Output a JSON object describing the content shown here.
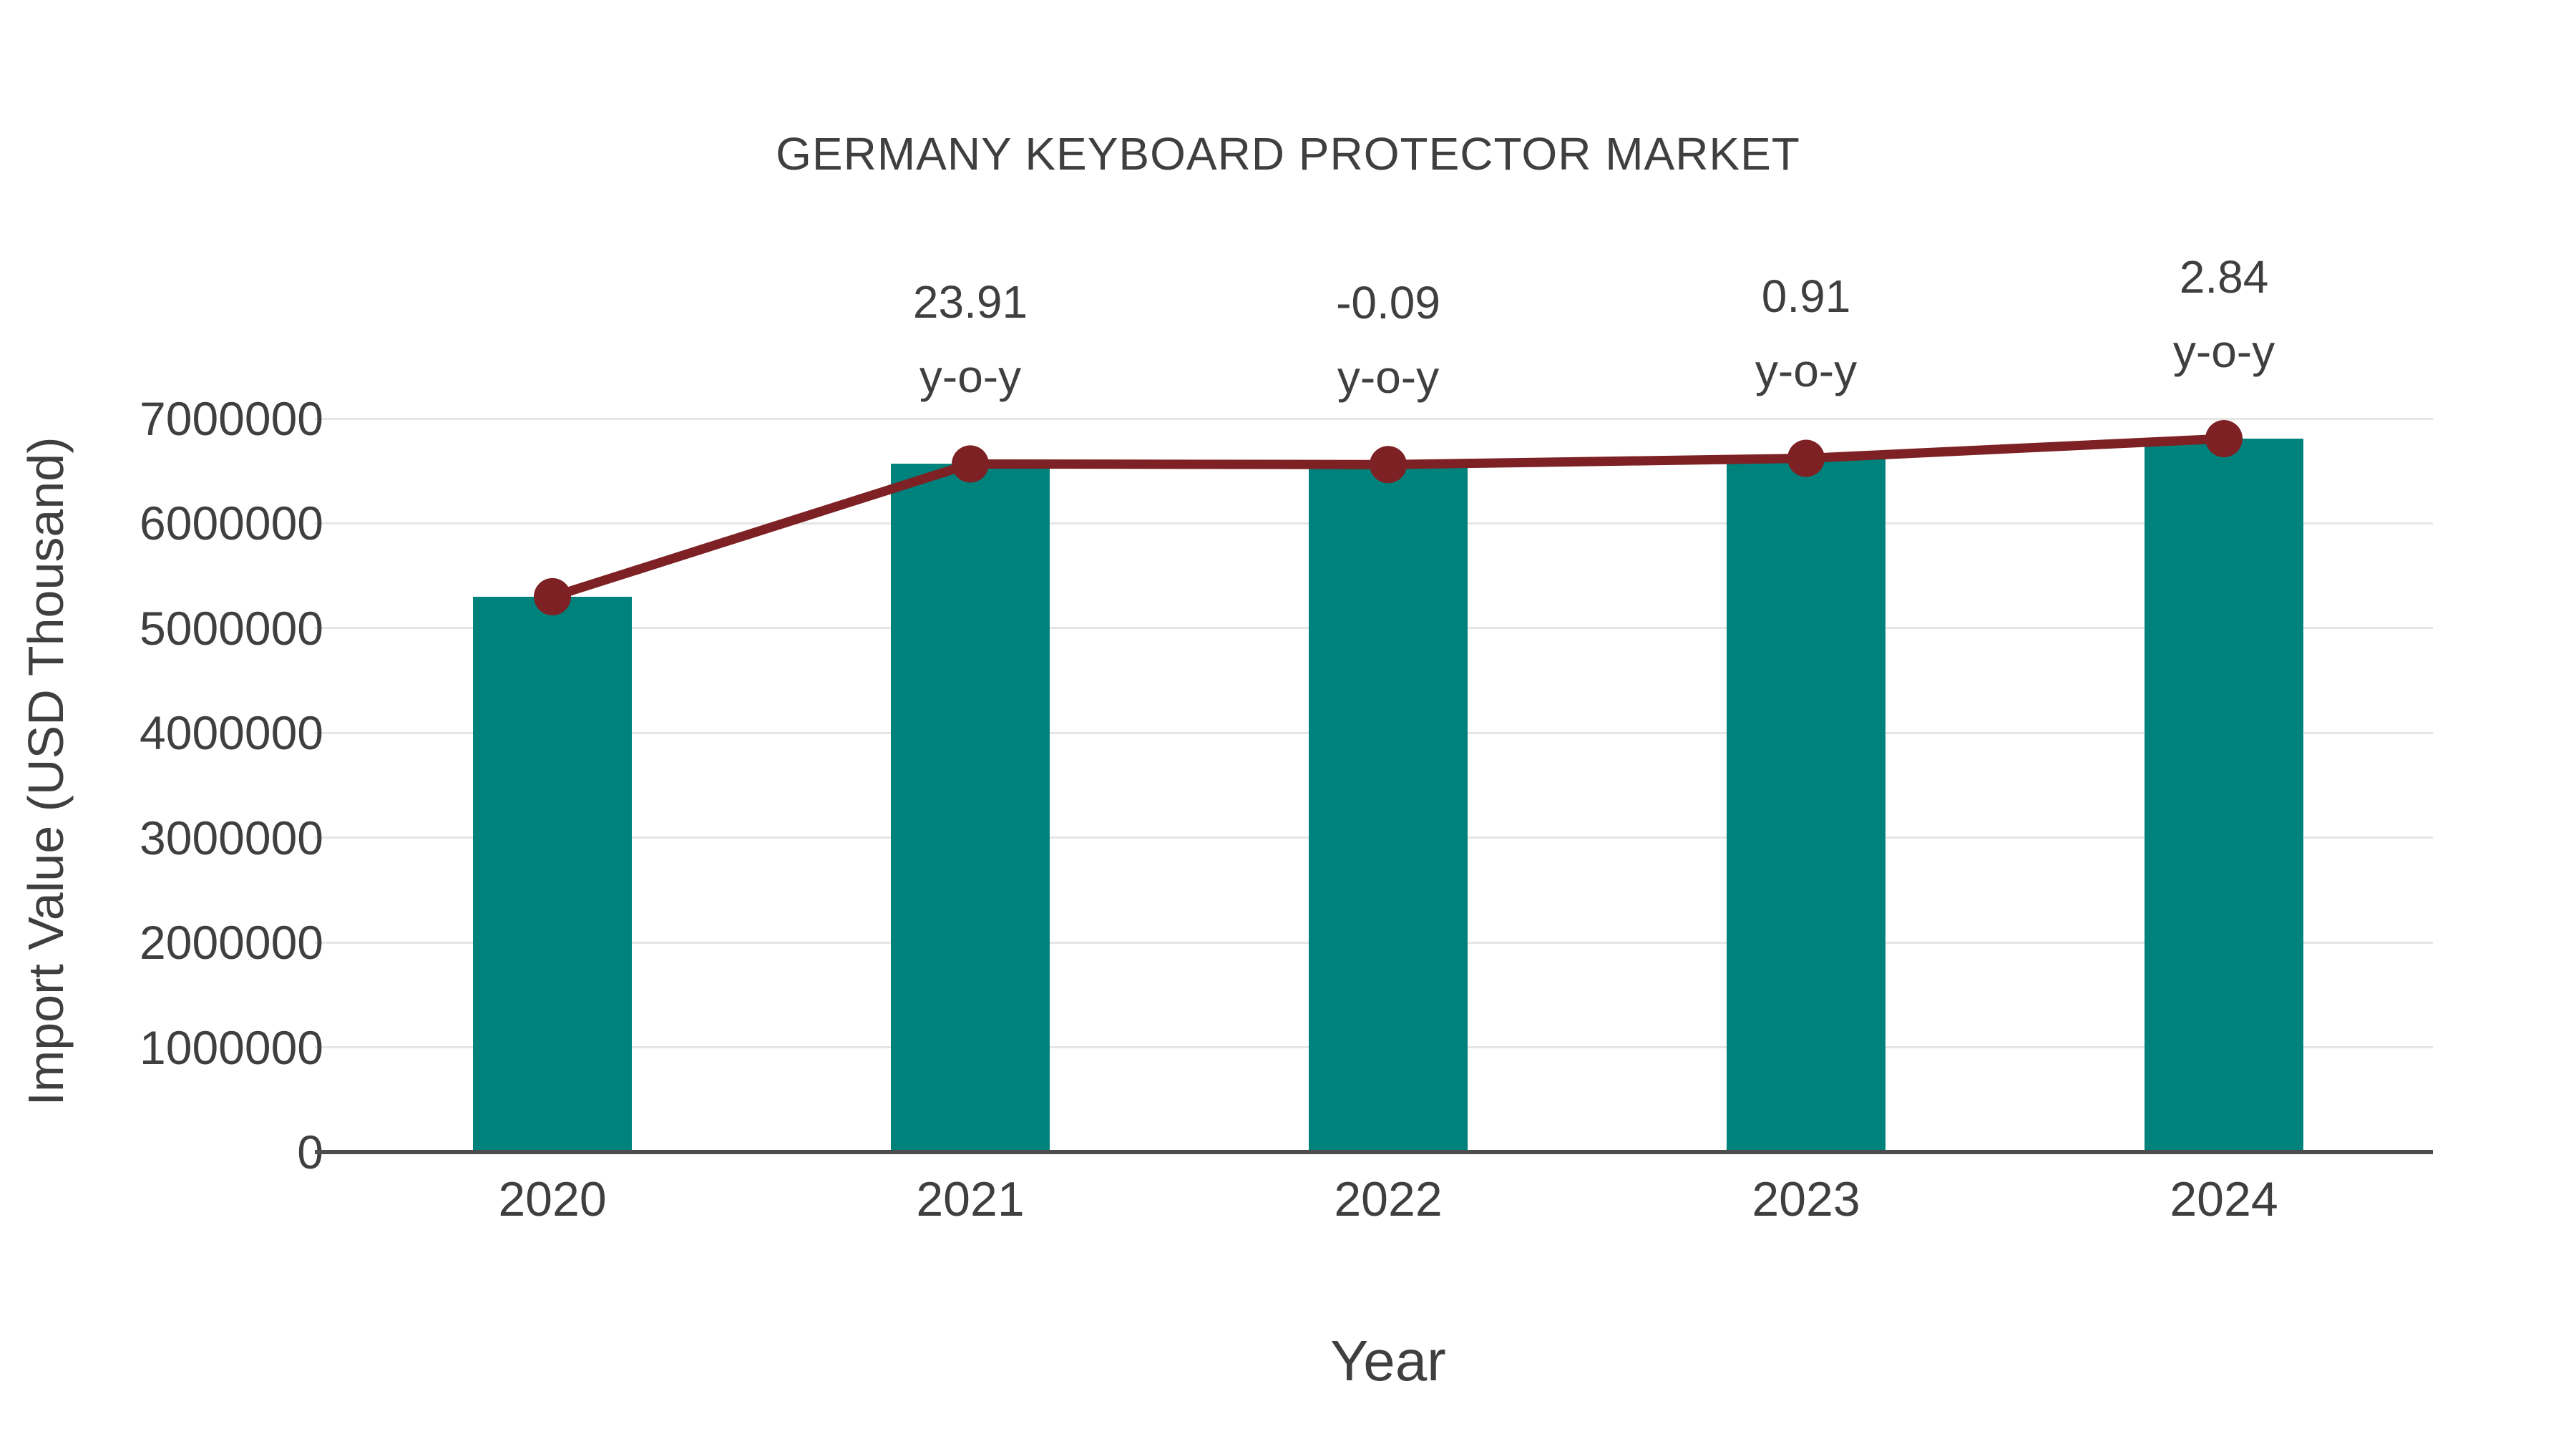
{
  "title": "GERMANY KEYBOARD PROTECTOR MARKET",
  "axes": {
    "x": {
      "title": "Year"
    },
    "y": {
      "title": "Import Value (USD Thousand)",
      "tick_labels": [
        "0",
        "1000000",
        "2000000",
        "3000000",
        "4000000",
        "5000000",
        "6000000",
        "7000000"
      ]
    }
  },
  "colors": {
    "bar": "#00827C",
    "line": "#7D2124",
    "text": "#3f3f3f",
    "grid": "#e6e6e6",
    "axis": "#4d4d4d"
  },
  "chart_data": {
    "type": "bar",
    "subtype": "bar-with-line-overlay",
    "title": "GERMANY KEYBOARD PROTECTOR MARKET",
    "xlabel": "Year",
    "ylabel": "Import Value (USD Thousand)",
    "categories": [
      "2020",
      "2021",
      "2022",
      "2023",
      "2024"
    ],
    "series": [
      {
        "name": "Import Value bars",
        "type": "bar",
        "color": "#00827C",
        "values": [
          5300000,
          6567000,
          6561000,
          6621000,
          6809000
        ]
      },
      {
        "name": "Import Value trend line",
        "type": "line",
        "color": "#7D2124",
        "values": [
          5300000,
          6567000,
          6561000,
          6621000,
          6809000
        ]
      }
    ],
    "ylim": [
      0,
      7000000
    ],
    "ytick_step": 1000000,
    "grid": "horizontal",
    "legend": "none",
    "annotations": [
      {
        "category": "2021",
        "line1": "23.91",
        "line2": "y-o-y"
      },
      {
        "category": "2022",
        "line1": "-0.09",
        "line2": "y-o-y"
      },
      {
        "category": "2023",
        "line1": "0.91",
        "line2": "y-o-y"
      },
      {
        "category": "2024",
        "line1": "2.84",
        "line2": "y-o-y"
      }
    ]
  }
}
